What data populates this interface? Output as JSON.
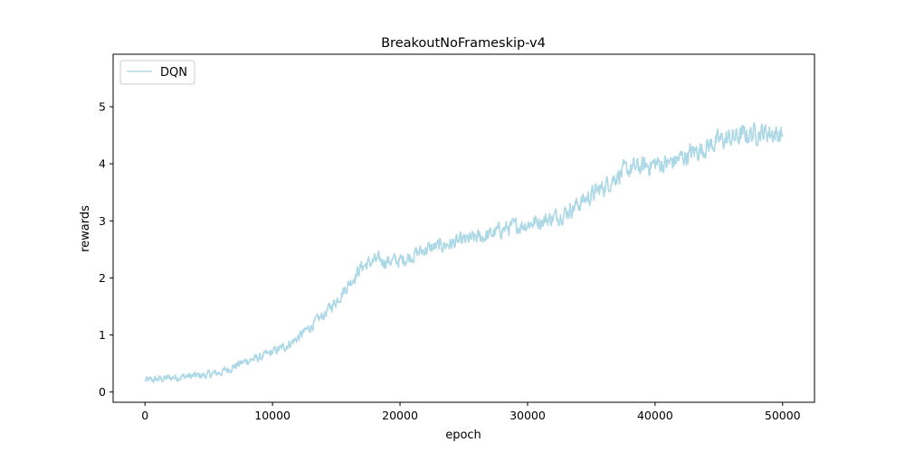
{
  "chart_data": {
    "type": "line",
    "title": "BreakoutNoFrameskip-v4",
    "xlabel": "epoch",
    "ylabel": "rewards",
    "xlim": [
      -2500,
      52500
    ],
    "ylim": [
      -0.18,
      5.92
    ],
    "xticks": [
      0,
      10000,
      20000,
      30000,
      40000,
      50000
    ],
    "xtick_labels": [
      "0",
      "10000",
      "20000",
      "30000",
      "40000",
      "50000"
    ],
    "yticks": [
      0,
      1,
      2,
      3,
      4,
      5
    ],
    "ytick_labels": [
      "0",
      "1",
      "2",
      "3",
      "4",
      "5"
    ],
    "grid": false,
    "legend": {
      "placement": "upper-left",
      "entries": [
        "DQN"
      ]
    },
    "series": [
      {
        "name": "DQN",
        "color": "#add8e6",
        "x": [
          0,
          1000,
          2000,
          3000,
          4000,
          5000,
          6000,
          7000,
          8000,
          9000,
          10000,
          11000,
          12000,
          13000,
          14000,
          15000,
          16000,
          17000,
          18000,
          19000,
          20000,
          21000,
          22000,
          23000,
          24000,
          25000,
          26000,
          27000,
          28000,
          29000,
          30000,
          31000,
          32000,
          33000,
          34000,
          35000,
          36000,
          37000,
          38000,
          39000,
          40000,
          41000,
          42000,
          43000,
          44000,
          45000,
          46000,
          47000,
          48000,
          49000,
          50000
        ],
        "y": [
          0.2,
          0.22,
          0.25,
          0.27,
          0.28,
          0.3,
          0.35,
          0.45,
          0.55,
          0.6,
          0.7,
          0.8,
          0.95,
          1.15,
          1.35,
          1.6,
          1.9,
          2.2,
          2.3,
          2.3,
          2.3,
          2.4,
          2.5,
          2.55,
          2.6,
          2.65,
          2.7,
          2.75,
          2.85,
          2.9,
          2.95,
          3.0,
          3.05,
          3.15,
          3.3,
          3.45,
          3.6,
          3.8,
          3.9,
          3.95,
          4.0,
          4.0,
          4.1,
          4.2,
          4.3,
          4.4,
          4.45,
          4.5,
          4.55,
          4.55,
          4.5
        ]
      }
    ]
  }
}
